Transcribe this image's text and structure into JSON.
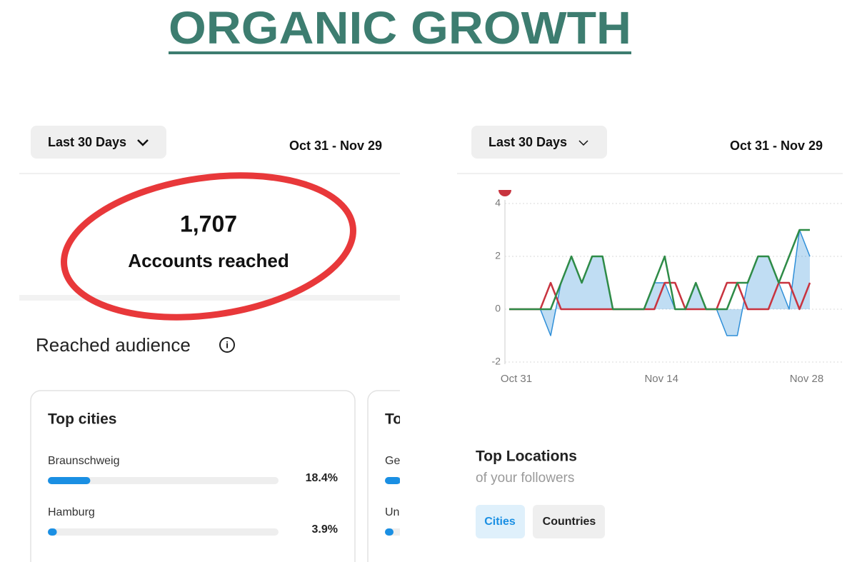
{
  "header": {
    "title": "ORGANIC GROWTH"
  },
  "left": {
    "range": "Last 30 Days",
    "dates": "Oct 31 - Nov 29",
    "reach": {
      "value": "1,707",
      "label": "Accounts reached"
    },
    "section": "Reached audience",
    "cards": [
      {
        "title": "Top cities",
        "rows": [
          {
            "name": "Braunschweig",
            "value": 18.4,
            "label": "18.4%"
          },
          {
            "name": "Hamburg",
            "value": 3.9,
            "label": "3.9%"
          }
        ]
      },
      {
        "title": "To",
        "rows": [
          {
            "name": "Ge"
          },
          {
            "name": "Un"
          }
        ]
      }
    ]
  },
  "right": {
    "range": "Last 30 Days",
    "dates": "Oct 31 - Nov 29",
    "chart_data": {
      "type": "line",
      "categories": [
        "Oct 31",
        null,
        null,
        null,
        null,
        null,
        null,
        null,
        null,
        null,
        null,
        null,
        null,
        null,
        "Nov 14",
        null,
        null,
        null,
        null,
        null,
        null,
        null,
        null,
        null,
        null,
        null,
        null,
        null,
        "Nov 28",
        null
      ],
      "series": [
        {
          "color": "#2f8fd8",
          "area": true,
          "values": [
            0,
            0,
            0,
            0,
            -1,
            1,
            2,
            1,
            2,
            2,
            0,
            0,
            0,
            0,
            1,
            1,
            0,
            0,
            1,
            0,
            0,
            -1,
            -1,
            1,
            2,
            2,
            1,
            0,
            3,
            2
          ]
        },
        {
          "color": "#c8343f",
          "values": [
            0,
            0,
            0,
            0,
            1,
            0,
            0,
            0,
            0,
            0,
            0,
            0,
            0,
            0,
            0,
            1,
            1,
            0,
            0,
            0,
            0,
            1,
            1,
            0,
            0,
            0,
            1,
            1,
            0,
            1
          ]
        },
        {
          "color": "#2e8b47",
          "values": [
            0,
            0,
            0,
            0,
            0,
            1,
            2,
            1,
            2,
            2,
            0,
            0,
            0,
            0,
            1,
            2,
            0,
            0,
            1,
            0,
            0,
            0,
            1,
            1,
            2,
            2,
            1,
            2,
            3,
            3
          ]
        }
      ],
      "ylim": [
        -2,
        4
      ],
      "yticks": [
        -2,
        0,
        2,
        4
      ],
      "grid": true
    },
    "locations": {
      "title": "Top Locations",
      "subtitle": "of your followers",
      "tabs": [
        "Cities",
        "Countries"
      ]
    }
  }
}
